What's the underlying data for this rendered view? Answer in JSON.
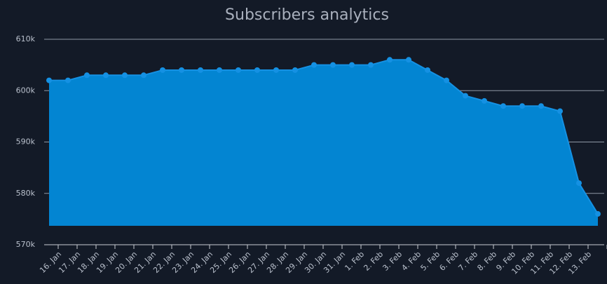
{
  "chart_data": {
    "type": "area",
    "title": "Subscribers analytics",
    "categories": [
      "16. Jan",
      "17. Jan",
      "18. Jan",
      "19. Jan",
      "20. Jan",
      "21. Jan",
      "22. Jan",
      "23. Jan",
      "24. Jan",
      "25. Jan",
      "26. Jan",
      "27. Jan",
      "28. Jan",
      "29. Jan",
      "30. Jan",
      "31. Jan",
      "1. Feb",
      "2. Feb",
      "3. Feb",
      "4. Feb",
      "5. Feb",
      "6. Feb",
      "7. Feb",
      "8. Feb",
      "9. Feb",
      "10. Feb",
      "11. Feb",
      "12. Feb",
      "13. Feb",
      null
    ],
    "values": [
      602000,
      602000,
      603000,
      603000,
      603000,
      603000,
      604000,
      604000,
      604000,
      604000,
      604000,
      604000,
      604000,
      604000,
      605000,
      605000,
      605000,
      605000,
      606000,
      606000,
      604000,
      602000,
      599000,
      598000,
      597000,
      597000,
      597000,
      596000,
      582000,
      576000
    ],
    "color": "#0385d2",
    "line_color": "#1591e3",
    "ylim": [
      570000,
      610000
    ],
    "yticks": [
      {
        "value": 570000,
        "label": "570k"
      },
      {
        "value": 580000,
        "label": "580k"
      },
      {
        "value": 590000,
        "label": "590k"
      },
      {
        "value": 600000,
        "label": "600k"
      },
      {
        "value": 610000,
        "label": "610k"
      }
    ],
    "grid": true
  }
}
